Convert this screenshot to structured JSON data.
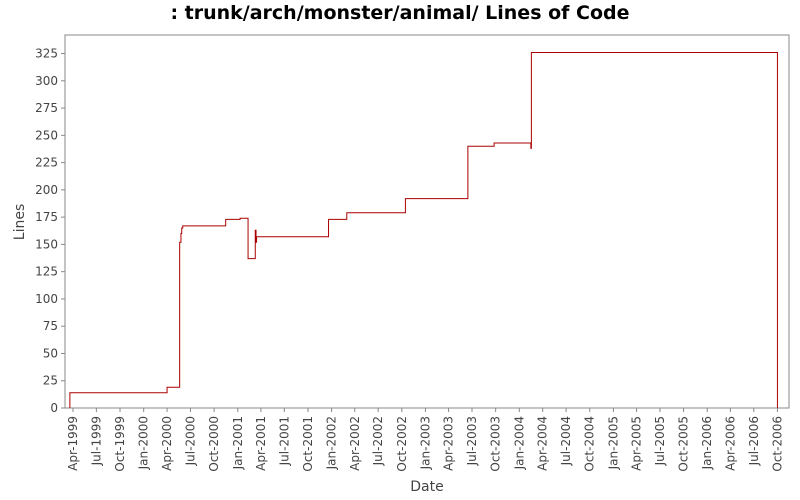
{
  "chart_data": {
    "type": "line",
    "title": ": trunk/arch/monster/animal/ Lines of Code",
    "xlabel": "Date",
    "ylabel": "Lines",
    "ylim": [
      0,
      342
    ],
    "xlim": [
      "1999-03-01",
      "2006-11-15"
    ],
    "yticks": [
      0,
      25,
      50,
      75,
      100,
      125,
      150,
      175,
      200,
      225,
      250,
      275,
      300,
      325
    ],
    "xticks": [
      "Apr-1999",
      "Jul-1999",
      "Oct-1999",
      "Jan-2000",
      "Apr-2000",
      "Jul-2000",
      "Oct-2000",
      "Jan-2001",
      "Apr-2001",
      "Jul-2001",
      "Oct-2001",
      "Jan-2002",
      "Apr-2002",
      "Jul-2002",
      "Oct-2002",
      "Jan-2003",
      "Apr-2003",
      "Jul-2003",
      "Oct-2003",
      "Jan-2004",
      "Apr-2004",
      "Jul-2004",
      "Oct-2004",
      "Jan-2005",
      "Apr-2005",
      "Jul-2005",
      "Oct-2005",
      "Jan-2006",
      "Apr-2006",
      "Jul-2006",
      "Oct-2006"
    ],
    "grid": false,
    "line_color": "#aa0000",
    "step": true,
    "series": [
      {
        "name": "",
        "points": [
          [
            "1999-03-20",
            0
          ],
          [
            "1999-03-20",
            14
          ],
          [
            "2000-04-01",
            14
          ],
          [
            "2000-04-01",
            19
          ],
          [
            "2000-05-20",
            19
          ],
          [
            "2000-05-20",
            152
          ],
          [
            "2000-05-25",
            152
          ],
          [
            "2000-05-25",
            160
          ],
          [
            "2000-05-28",
            160
          ],
          [
            "2000-05-28",
            165
          ],
          [
            "2000-06-01",
            165
          ],
          [
            "2000-06-01",
            167
          ],
          [
            "2000-11-15",
            167
          ],
          [
            "2000-11-15",
            173
          ],
          [
            "2001-01-10",
            173
          ],
          [
            "2001-01-10",
            174
          ],
          [
            "2001-02-10",
            174
          ],
          [
            "2001-02-10",
            137
          ],
          [
            "2001-03-10",
            137
          ],
          [
            "2001-03-10",
            163
          ],
          [
            "2001-03-13",
            163
          ],
          [
            "2001-03-13",
            152
          ],
          [
            "2001-03-15",
            152
          ],
          [
            "2001-03-15",
            157
          ],
          [
            "2001-12-20",
            157
          ],
          [
            "2001-12-20",
            173
          ],
          [
            "2002-03-01",
            173
          ],
          [
            "2002-03-01",
            179
          ],
          [
            "2002-10-15",
            179
          ],
          [
            "2002-10-15",
            192
          ],
          [
            "2003-06-15",
            192
          ],
          [
            "2003-06-15",
            240
          ],
          [
            "2003-09-25",
            240
          ],
          [
            "2003-09-25",
            243
          ],
          [
            "2004-02-15",
            243
          ],
          [
            "2004-02-15",
            238
          ],
          [
            "2004-02-17",
            238
          ],
          [
            "2004-02-17",
            326
          ],
          [
            "2006-10-01",
            326
          ],
          [
            "2006-10-01",
            0
          ]
        ]
      }
    ]
  }
}
